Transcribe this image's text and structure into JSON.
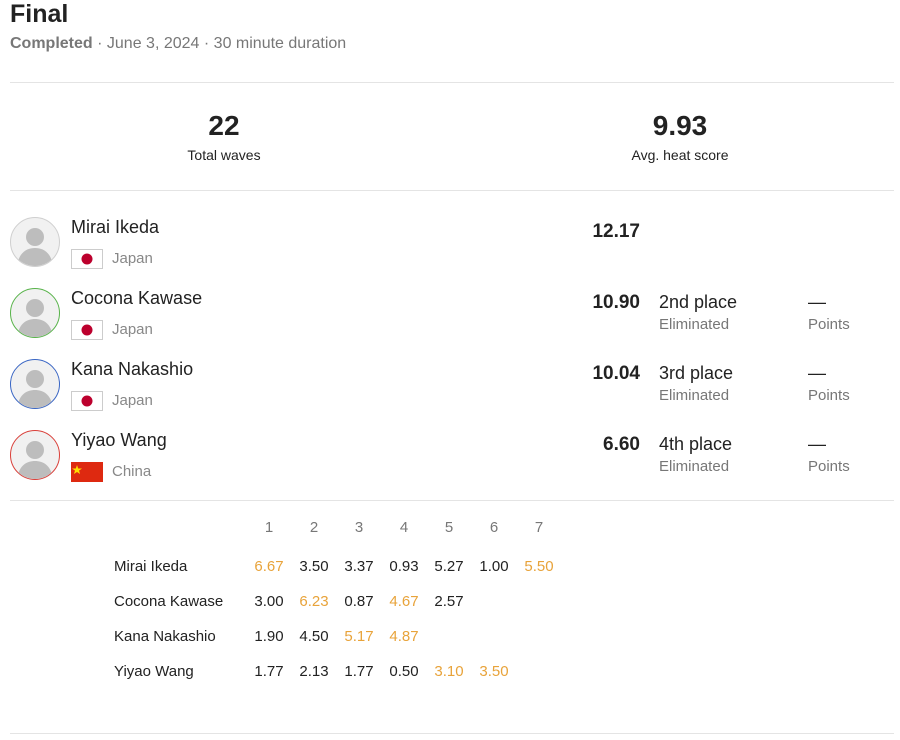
{
  "header": {
    "title": "Final",
    "status": "Completed",
    "separator": "·",
    "date": "June 3, 2024",
    "duration": "30 minute duration"
  },
  "stats": [
    {
      "value": 22,
      "label": "Total waves"
    },
    {
      "value": 9.93,
      "label": "Avg. heat score"
    }
  ],
  "athletes": [
    {
      "name": "Mirai Ikeda",
      "country": "Japan",
      "score": "12.17"
    },
    {
      "name": "Cocona Kawase",
      "country": "Japan",
      "score": "10.90",
      "place": "2nd place",
      "status": "Eliminated",
      "points": "—",
      "points_label": "Points"
    },
    {
      "name": "Kana Nakashio",
      "country": "Japan",
      "score": "10.04",
      "place": "3rd place",
      "status": "Eliminated",
      "points": "—",
      "points_label": "Points"
    },
    {
      "name": "Yiyao Wang",
      "country": "China",
      "score": "6.60",
      "place": "4th place",
      "status": "Eliminated",
      "points": "—",
      "points_label": "Points"
    }
  ],
  "waves": {
    "highlight_color": "#e8a33a",
    "columns": [
      1,
      2,
      3,
      4,
      5,
      6,
      7
    ],
    "rows": [
      {
        "name": "Mirai Ikeda",
        "scores": [
          {
            "score": "6.67",
            "highlight": true
          },
          {
            "score": "3.50"
          },
          {
            "score": "3.37"
          },
          {
            "score": "0.93"
          },
          {
            "score": "5.27"
          },
          {
            "score": "1.00"
          },
          {
            "score": "5.50",
            "highlight": true
          }
        ]
      },
      {
        "name": "Cocona Kawase",
        "scores": [
          {
            "score": "3.00"
          },
          {
            "score": "6.23",
            "highlight": true
          },
          {
            "score": "0.87"
          },
          {
            "score": "4.67",
            "highlight": true
          },
          {
            "score": "2.57"
          }
        ]
      },
      {
        "name": "Kana Nakashio",
        "scores": [
          {
            "score": "1.90"
          },
          {
            "score": "4.50"
          },
          {
            "score": "5.17",
            "highlight": true
          },
          {
            "score": "4.87",
            "highlight": true
          }
        ]
      },
      {
        "name": "Yiyao Wang",
        "scores": [
          {
            "score": "1.77"
          },
          {
            "score": "2.13"
          },
          {
            "score": "1.77"
          },
          {
            "score": "0.50"
          },
          {
            "score": "3.10",
            "highlight": true
          },
          {
            "score": "3.50",
            "highlight": true
          }
        ]
      }
    ]
  }
}
